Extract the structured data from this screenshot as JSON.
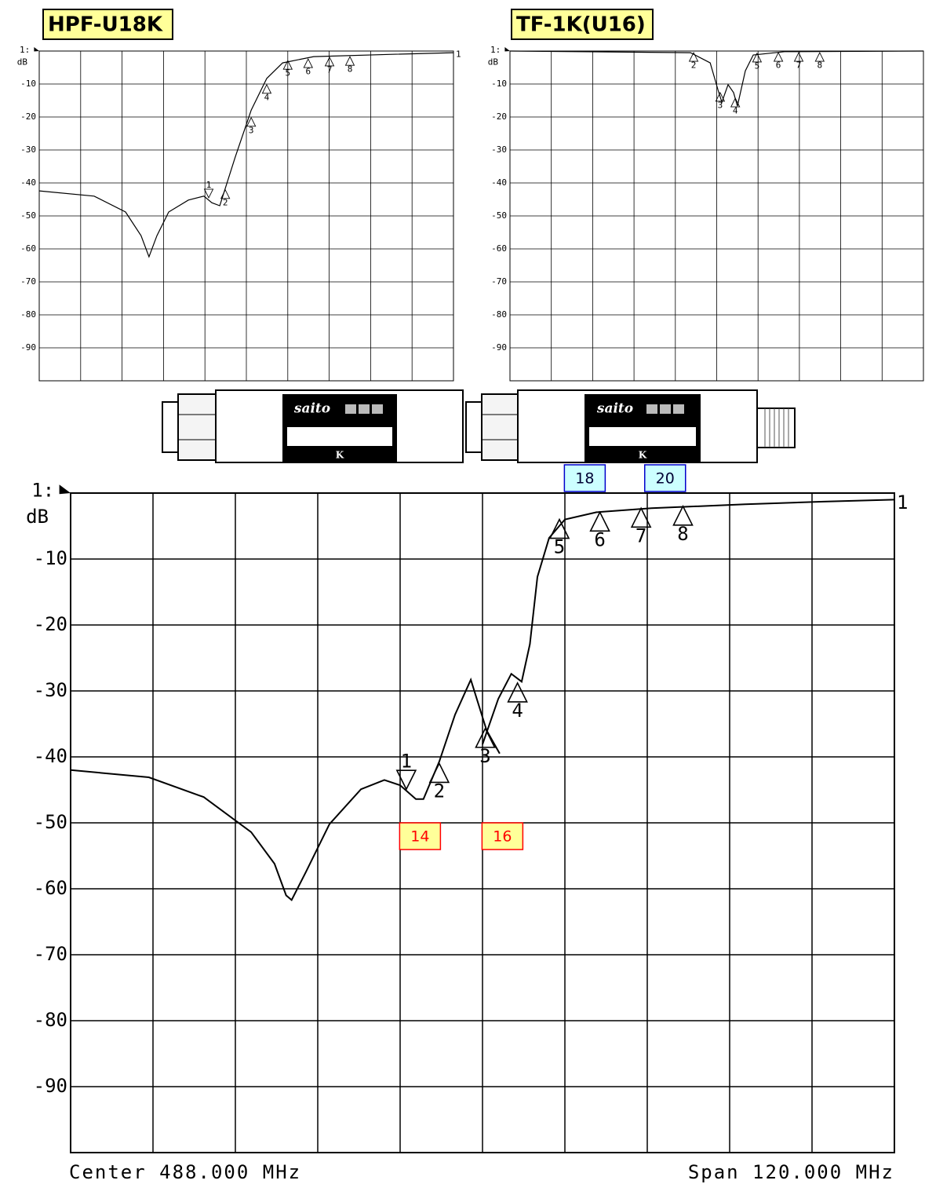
{
  "chart_data": [
    {
      "type": "line",
      "title": "HPF-U18K",
      "reference_label": "1:",
      "y_unit": "dB",
      "trace_label": "1",
      "color": "#000000",
      "xlim": [
        428,
        548
      ],
      "xticks": [
        428,
        440,
        452,
        464,
        476,
        488,
        500,
        512,
        524,
        536,
        548
      ],
      "ylim": [
        -100,
        0
      ],
      "yticks": [
        -10,
        -20,
        -30,
        -40,
        -50,
        -60,
        -70,
        -80,
        -90
      ],
      "grid": true,
      "x": [
        428,
        443.9,
        453,
        457.5,
        459.8,
        462.1,
        465.5,
        471.2,
        475.7,
        478,
        480.3,
        484.8,
        489.4,
        493.9,
        498.5,
        507.5,
        530.3,
        548
      ],
      "values": [
        -42.4,
        -44,
        -48.8,
        -56,
        -62.4,
        -56,
        -48.8,
        -45.2,
        -44,
        -46,
        -46.9,
        -32.1,
        -17.9,
        -8.3,
        -3.6,
        -1.7,
        -1,
        -0.5
      ],
      "markers": [
        {
          "label": "1",
          "x": 477.1,
          "value": -44.5,
          "inverted": true
        },
        {
          "label": "2",
          "x": 481.9,
          "value": -42.1
        },
        {
          "label": "3",
          "x": 489.4,
          "value": -20.2
        },
        {
          "label": "4",
          "x": 493.9,
          "value": -10.2
        },
        {
          "label": "5",
          "x": 500,
          "value": -2.9
        },
        {
          "label": "6",
          "x": 505.9,
          "value": -2.4
        },
        {
          "label": "7",
          "x": 512.1,
          "value": -1.9
        },
        {
          "label": "8",
          "x": 518,
          "value": -1.7
        }
      ]
    },
    {
      "type": "line",
      "title": "TF-1K(U16)",
      "reference_label": "1:",
      "y_unit": "dB",
      "color": "#000000",
      "xlim": [
        428,
        548
      ],
      "xticks": [
        428,
        440,
        452,
        464,
        476,
        488,
        500,
        512,
        524,
        536,
        548
      ],
      "ylim": [
        -100,
        0
      ],
      "yticks": [
        -10,
        -20,
        -30,
        -40,
        -50,
        -60,
        -70,
        -80,
        -90
      ],
      "grid": true,
      "x": [
        428,
        480.4,
        486.1,
        488.4,
        489.5,
        491.3,
        492.9,
        494,
        496.3,
        498.6,
        507.7,
        548
      ],
      "values": [
        0,
        -0.5,
        -3.6,
        -11.9,
        -15.5,
        -10.2,
        -12.6,
        -16.7,
        -6,
        -1.2,
        -0.2,
        0
      ],
      "markers": [
        {
          "label": "2",
          "x": 481.3,
          "value": -0.5
        },
        {
          "label": "3",
          "x": 489,
          "value": -12.6
        },
        {
          "label": "4",
          "x": 493.4,
          "value": -14.3
        },
        {
          "label": "5",
          "x": 499.7,
          "value": -0.7
        },
        {
          "label": "6",
          "x": 505.9,
          "value": -0.5
        },
        {
          "label": "7",
          "x": 511.8,
          "value": -0.5
        },
        {
          "label": "8",
          "x": 517.9,
          "value": -0.5
        }
      ]
    },
    {
      "type": "line",
      "reference_label": "1:",
      "y_unit": "dB",
      "trace_label": "1",
      "color": "#000000",
      "annotations": [
        "Center 488.000 MHz",
        "Span 120.000 MHz"
      ],
      "xlim": [
        428,
        548
      ],
      "xticks": [
        428,
        440,
        452,
        464,
        476,
        488,
        500,
        512,
        524,
        536,
        548
      ],
      "ylim": [
        -100,
        0
      ],
      "yticks": [
        -10,
        -20,
        -30,
        -40,
        -50,
        -60,
        -70,
        -80,
        -90
      ],
      "grid": true,
      "x": [
        428,
        439.4,
        447.4,
        454.3,
        457.7,
        459.4,
        460.2,
        462.3,
        465.7,
        470.3,
        473.7,
        476,
        478.3,
        479.4,
        481.7,
        484,
        486.3,
        488.6,
        490.5,
        489,
        488,
        490.3,
        492.2,
        493.7,
        494.9,
        496,
        497.7,
        500,
        504.6,
        512.6,
        526.3,
        537.7,
        548
      ],
      "values": [
        -42,
        -43.1,
        -46.1,
        -51.4,
        -56.2,
        -61,
        -61.7,
        -57.4,
        -50.2,
        -44.9,
        -43.5,
        -44.3,
        -46.4,
        -46.4,
        -40.7,
        -33.6,
        -28.3,
        -36,
        -39.5,
        null,
        -38.1,
        -31.2,
        -27.4,
        -28.6,
        -22.9,
        -12.7,
        -6.8,
        -4,
        -2.9,
        -2.3,
        -1.7,
        -1.3,
        -1
      ],
      "markers": [
        {
          "label": "1",
          "x": 476.9,
          "value": -44.9,
          "inverted": true
        },
        {
          "label": "2",
          "x": 481.7,
          "value": -41
        },
        {
          "label": "3",
          "x": 488.4,
          "value": -35.7
        },
        {
          "label": "4",
          "x": 493.1,
          "value": -28.8
        },
        {
          "label": "5",
          "x": 499.2,
          "value": -4
        },
        {
          "label": "6",
          "x": 505.1,
          "value": -2.9
        },
        {
          "label": "7",
          "x": 511.1,
          "value": -2.3
        },
        {
          "label": "8",
          "x": 517.2,
          "value": -2
        }
      ],
      "channel_labels": [
        {
          "label": "14",
          "x": 478.9,
          "side": "bottom",
          "color": "#ff0000",
          "fill": "#ffff99"
        },
        {
          "label": "16",
          "x": 490.9,
          "side": "bottom",
          "color": "#ff0000",
          "fill": "#ffff99"
        },
        {
          "label": "18",
          "x": 502.9,
          "side": "top",
          "color": "#0000cc",
          "fill": "#ccffff"
        },
        {
          "label": "20",
          "x": 514.6,
          "side": "top",
          "color": "#0000cc",
          "fill": "#ccffff"
        }
      ]
    }
  ],
  "devices": [
    {
      "logo": "saito",
      "label": "K"
    },
    {
      "logo": "saito",
      "label": "K"
    }
  ]
}
